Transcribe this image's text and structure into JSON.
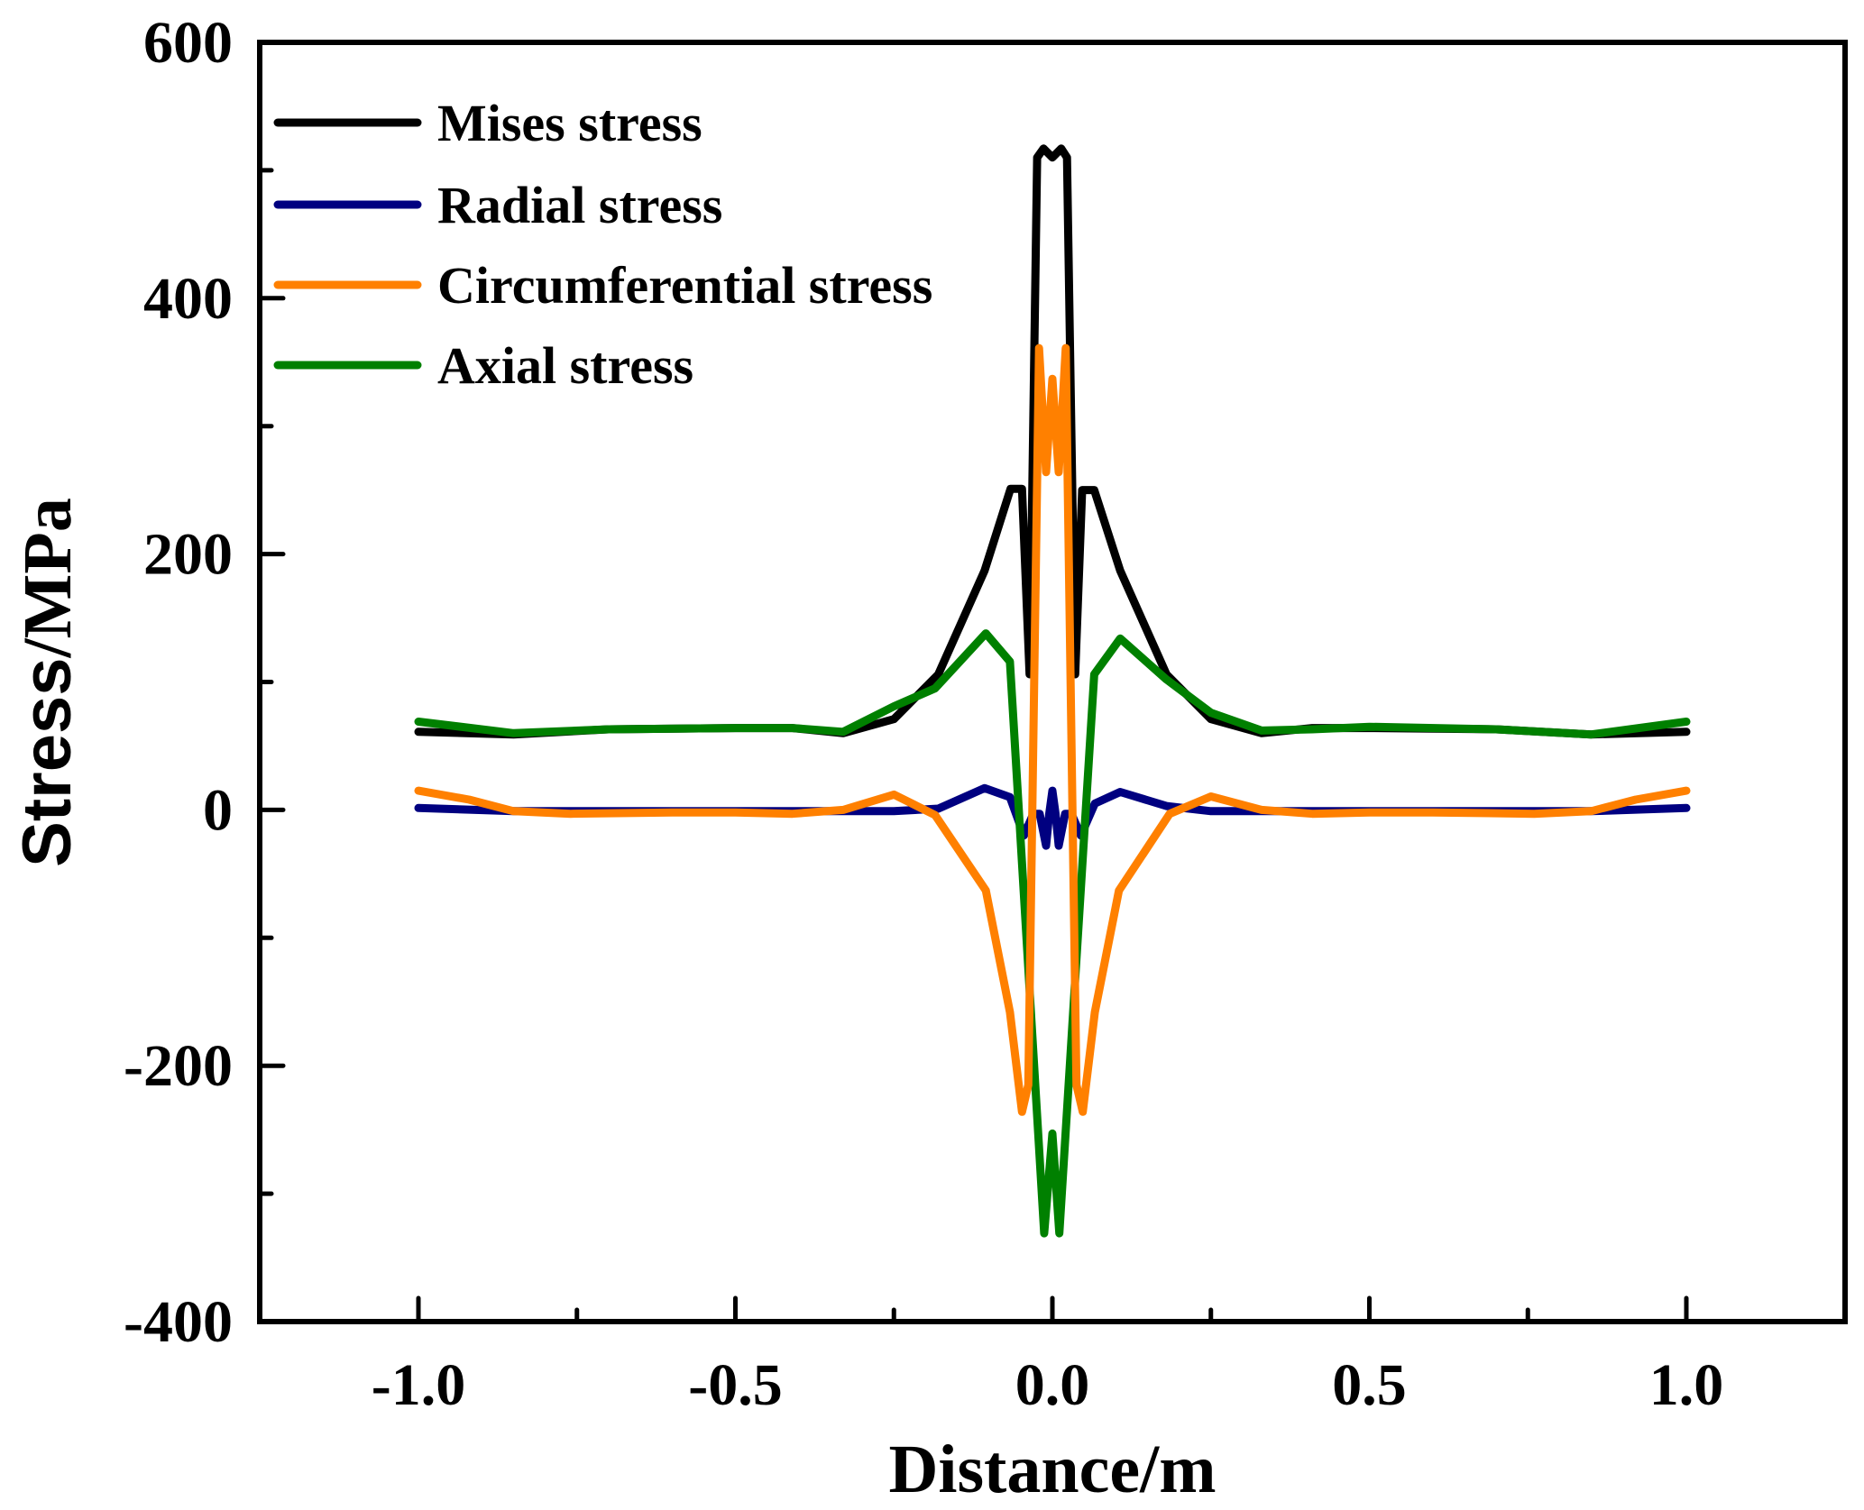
{
  "chart_data": {
    "type": "line",
    "title": "",
    "xlabel": "Distance/m",
    "ylabel": "Stress/MPa",
    "ylabel_parts": [
      "Stress",
      "/MPa"
    ],
    "xlim": [
      -1.25,
      1.25
    ],
    "ylim": [
      -400,
      600
    ],
    "grid": false,
    "legend_position": "top-left",
    "x_ticks": [
      -1.0,
      -0.5,
      0.0,
      0.5,
      1.0
    ],
    "x_tick_labels": [
      "-1.0",
      "-0.5",
      "0.0",
      "0.5",
      "1.0"
    ],
    "x_minor_ticks": [
      -0.75,
      -0.25,
      0.25,
      0.75
    ],
    "y_ticks": [
      600,
      400,
      200,
      0,
      -200,
      -400
    ],
    "y_tick_labels": [
      "600",
      "400",
      "200",
      "0",
      "-200",
      "-400"
    ],
    "y_minor_ticks": [
      500,
      300,
      100,
      -100,
      -300
    ],
    "series": [
      {
        "name": "Mises stress",
        "color": "#000000",
        "points": [
          [
            -1.0,
            61
          ],
          [
            -0.85,
            59
          ],
          [
            -0.7,
            63
          ],
          [
            -0.5,
            64
          ],
          [
            -0.41,
            64
          ],
          [
            -0.33,
            60
          ],
          [
            -0.25,
            71
          ],
          [
            -0.18,
            106
          ],
          [
            -0.107,
            187
          ],
          [
            -0.066,
            251
          ],
          [
            -0.048,
            251
          ],
          [
            -0.036,
            106
          ],
          [
            -0.024,
            510
          ],
          [
            -0.014,
            517
          ],
          [
            0.0,
            510
          ],
          [
            0.014,
            517
          ],
          [
            0.023,
            510
          ],
          [
            0.036,
            106
          ],
          [
            0.047,
            250
          ],
          [
            0.066,
            250
          ],
          [
            0.107,
            187
          ],
          [
            0.18,
            106
          ],
          [
            0.25,
            71
          ],
          [
            0.33,
            60
          ],
          [
            0.41,
            64
          ],
          [
            0.5,
            64
          ],
          [
            0.7,
            63
          ],
          [
            0.85,
            59
          ],
          [
            1.0,
            61
          ]
        ]
      },
      {
        "name": "Radial stress",
        "color": "#000080",
        "points": [
          [
            -1.0,
            1.5
          ],
          [
            -0.85,
            -1
          ],
          [
            -0.7,
            -1
          ],
          [
            -0.5,
            -1
          ],
          [
            -0.33,
            -1
          ],
          [
            -0.25,
            -1
          ],
          [
            -0.18,
            1
          ],
          [
            -0.107,
            17
          ],
          [
            -0.067,
            10
          ],
          [
            -0.045,
            -20
          ],
          [
            -0.03,
            -3
          ],
          [
            -0.02,
            -3
          ],
          [
            -0.01,
            -28
          ],
          [
            -0.005,
            -3
          ],
          [
            0.0,
            15
          ],
          [
            0.005,
            -3
          ],
          [
            0.01,
            -28
          ],
          [
            0.02,
            -3
          ],
          [
            0.03,
            -3
          ],
          [
            0.045,
            -20
          ],
          [
            0.067,
            5
          ],
          [
            0.107,
            14
          ],
          [
            0.18,
            3
          ],
          [
            0.25,
            -1
          ],
          [
            0.33,
            -1
          ],
          [
            0.5,
            -1
          ],
          [
            0.7,
            -1
          ],
          [
            0.85,
            -1
          ],
          [
            1.0,
            1.5
          ]
        ]
      },
      {
        "name": "Circumferential stress",
        "color": "#FF8000",
        "points": [
          [
            -1.0,
            15
          ],
          [
            -0.92,
            8
          ],
          [
            -0.85,
            -1
          ],
          [
            -0.76,
            -3
          ],
          [
            -0.6,
            -2
          ],
          [
            -0.5,
            -2
          ],
          [
            -0.41,
            -3
          ],
          [
            -0.33,
            0
          ],
          [
            -0.25,
            12
          ],
          [
            -0.185,
            -4
          ],
          [
            -0.105,
            -63
          ],
          [
            -0.067,
            -158
          ],
          [
            -0.048,
            -236
          ],
          [
            -0.038,
            -215
          ],
          [
            -0.021,
            361
          ],
          [
            -0.01,
            264
          ],
          [
            0.0,
            337
          ],
          [
            0.01,
            264
          ],
          [
            0.021,
            361
          ],
          [
            0.038,
            -215
          ],
          [
            0.048,
            -236
          ],
          [
            0.067,
            -158
          ],
          [
            0.105,
            -63
          ],
          [
            0.185,
            -3
          ],
          [
            0.25,
            10.5
          ],
          [
            0.33,
            0
          ],
          [
            0.41,
            -3
          ],
          [
            0.5,
            -2
          ],
          [
            0.6,
            -2
          ],
          [
            0.76,
            -3
          ],
          [
            0.85,
            -1
          ],
          [
            0.92,
            8
          ],
          [
            1.0,
            15
          ]
        ]
      },
      {
        "name": "Axial stress",
        "color": "#008000",
        "points": [
          [
            -1.0,
            69
          ],
          [
            -0.85,
            60
          ],
          [
            -0.7,
            63
          ],
          [
            -0.5,
            64
          ],
          [
            -0.41,
            64
          ],
          [
            -0.33,
            61
          ],
          [
            -0.25,
            81
          ],
          [
            -0.185,
            95
          ],
          [
            -0.105,
            138
          ],
          [
            -0.067,
            116
          ],
          [
            -0.013,
            -331
          ],
          [
            0.0,
            -253
          ],
          [
            0.011,
            -331
          ],
          [
            0.066,
            106
          ],
          [
            0.107,
            134
          ],
          [
            0.18,
            102
          ],
          [
            0.25,
            76
          ],
          [
            0.33,
            62
          ],
          [
            0.41,
            63
          ],
          [
            0.5,
            65
          ],
          [
            0.7,
            63
          ],
          [
            0.85,
            59
          ],
          [
            1.0,
            69
          ]
        ]
      }
    ]
  }
}
